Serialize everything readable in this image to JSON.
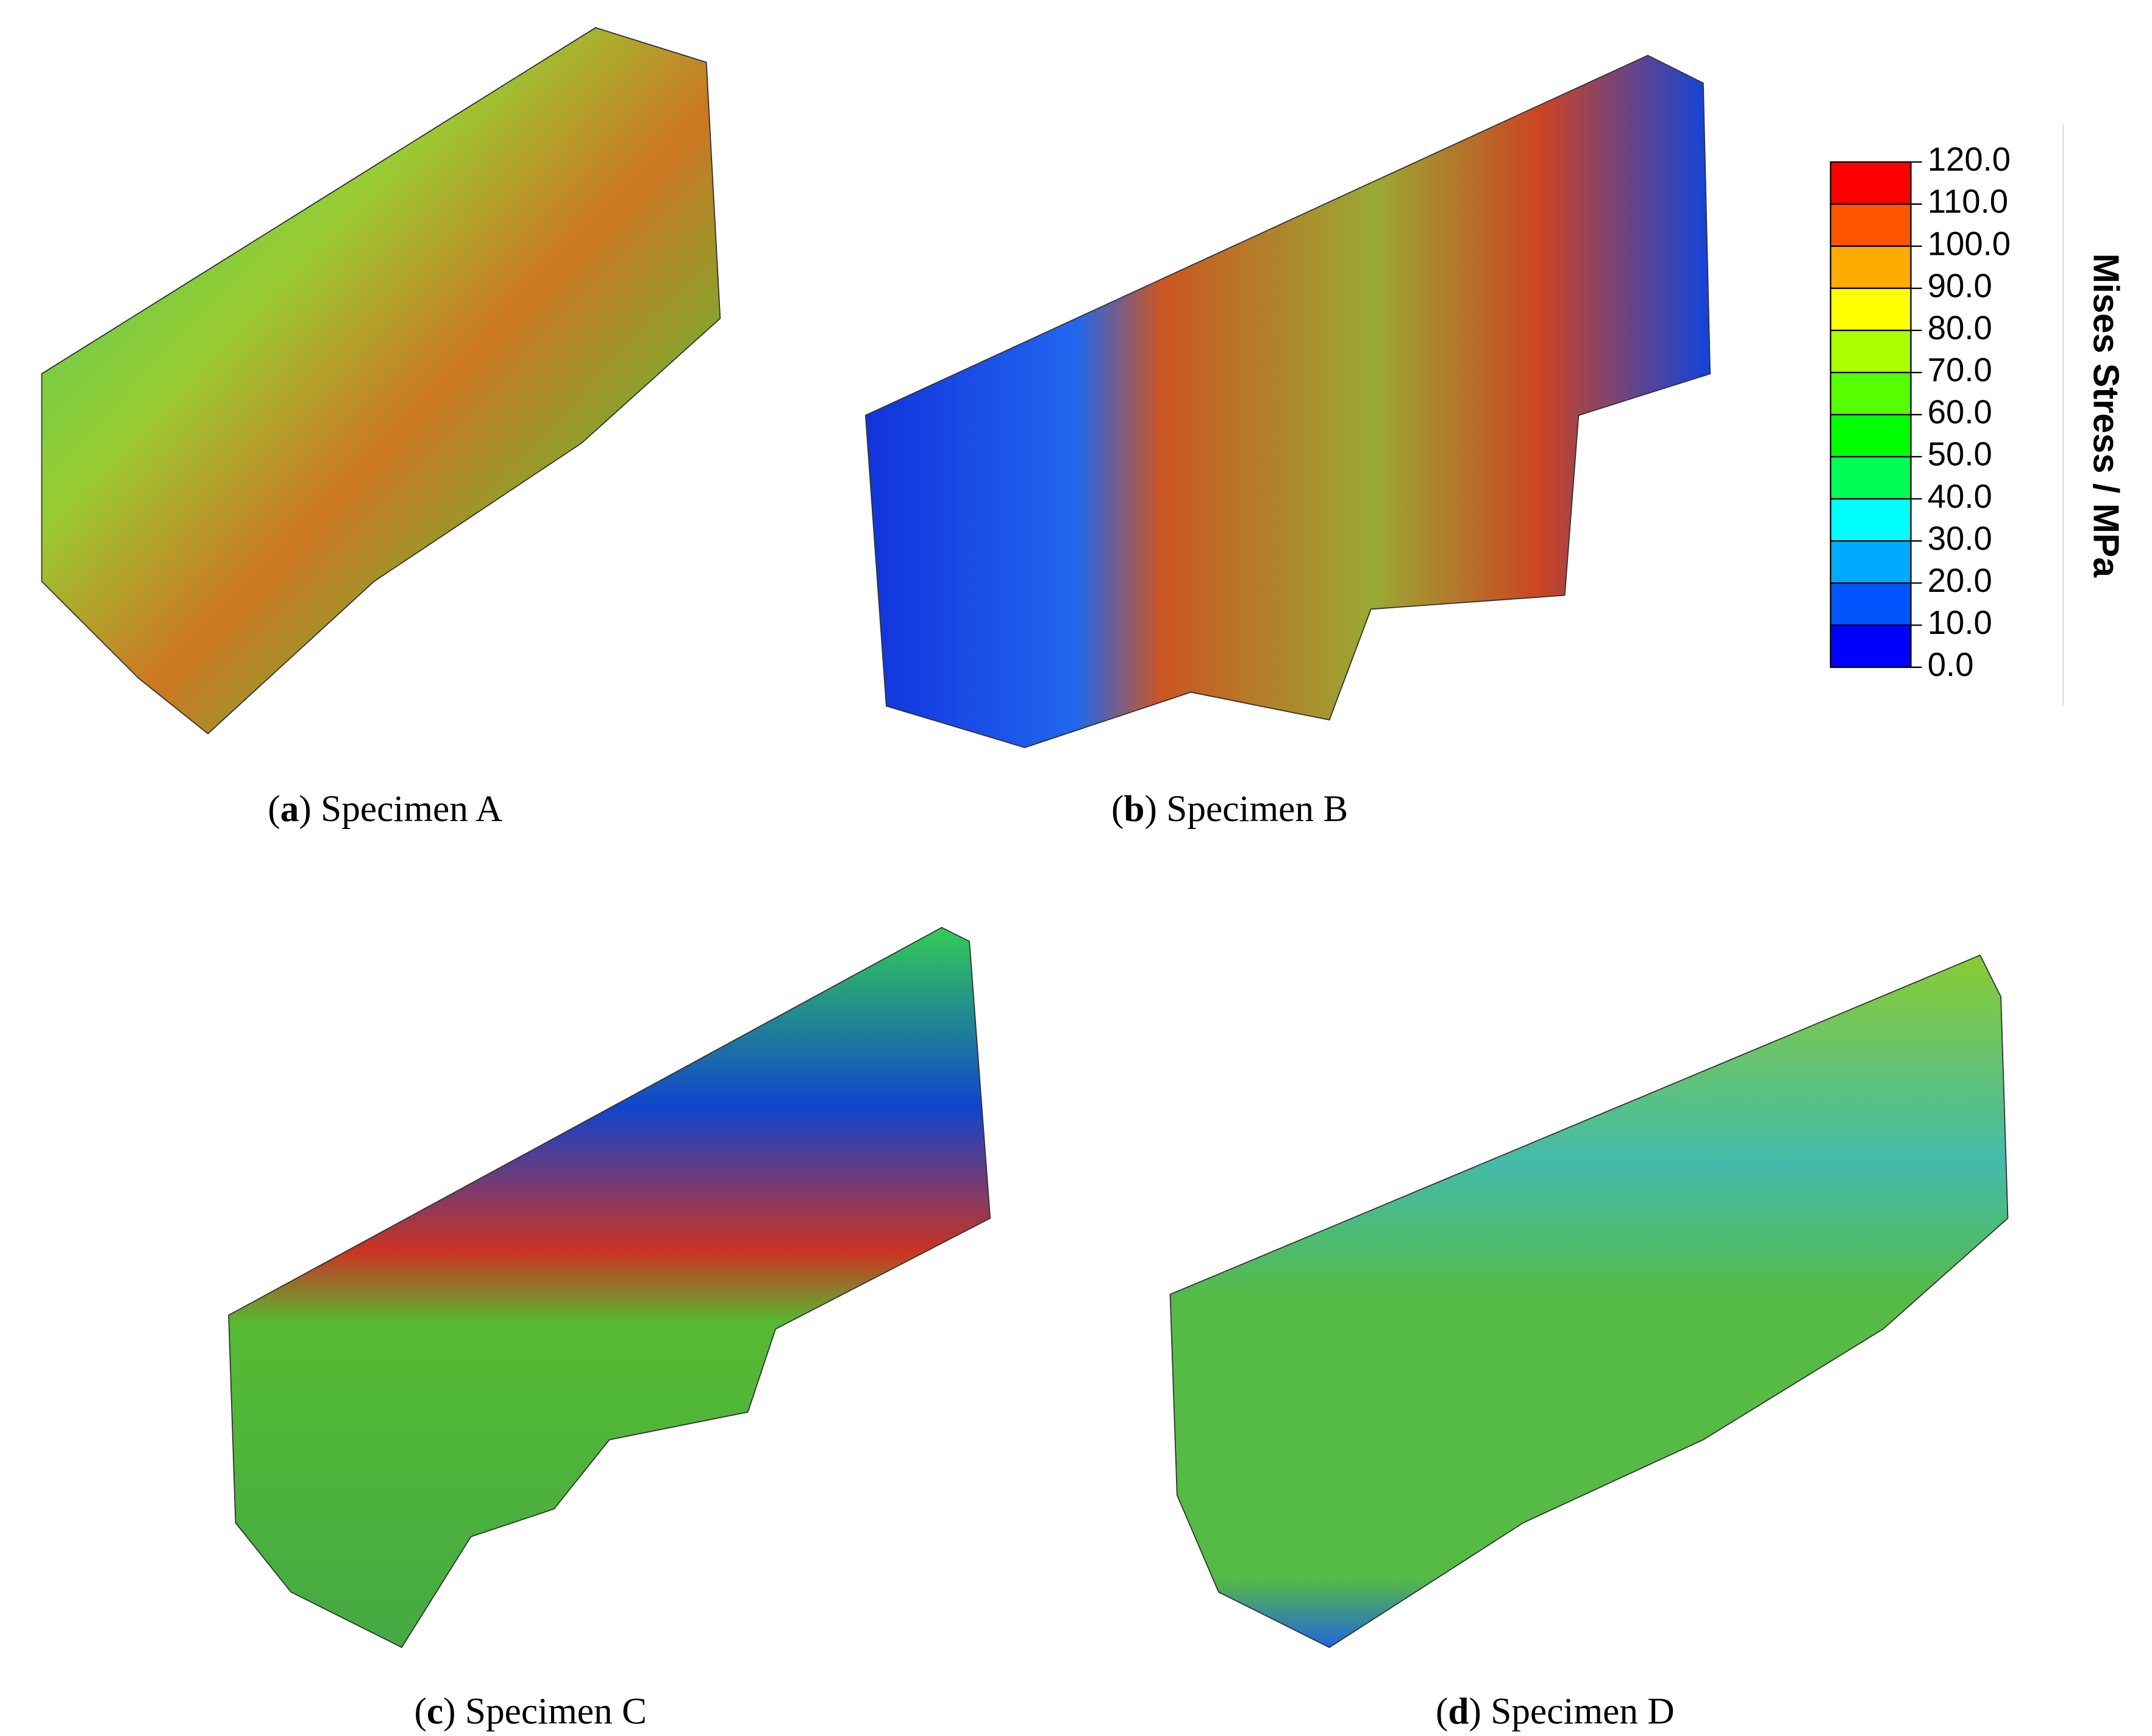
{
  "panels": [
    {
      "prefix": "(",
      "letter": "a",
      "suffix": ") Specimen A"
    },
    {
      "prefix": "(",
      "letter": "b",
      "suffix": ") Specimen B"
    },
    {
      "prefix": "(",
      "letter": "c",
      "suffix": ") Specimen C"
    },
    {
      "prefix": "(",
      "letter": "d",
      "suffix": ") Specimen D"
    }
  ],
  "legend": {
    "title": "Mises Stress / MPa",
    "labels": [
      "120.0",
      "110.0",
      "100.0",
      "90.0",
      "80.0",
      "70.0",
      "60.0",
      "50.0",
      "40.0",
      "30.0",
      "20.0",
      "10.0",
      "0.0"
    ],
    "colors": [
      "#ff0000",
      "#ff5500",
      "#ffaa00",
      "#ffff00",
      "#aaff00",
      "#55ff00",
      "#00ff00",
      "#00ff55",
      "#00ffff",
      "#00aaff",
      "#0055ff",
      "#0000ff"
    ]
  }
}
